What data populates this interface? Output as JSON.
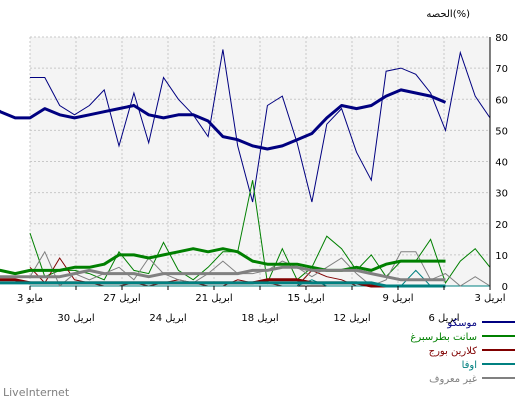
{
  "chart_data": {
    "type": "line",
    "ylabel": "الحصه(%)",
    "ylim": [
      0,
      80
    ],
    "yticks": [
      0,
      10,
      20,
      30,
      40,
      50,
      60,
      70,
      80
    ],
    "x_labels_row1": [
      "3 ابريل",
      "6 ابريل",
      "9 ابريل",
      "15 ابريل",
      "18 ابريل",
      "21 ابريل",
      "24 ابريل",
      "27 ابريل",
      "30 ابريل",
      "3 مايو"
    ],
    "x_labels_row2": [
      "6 ابريل",
      "12 ابريل",
      "18 ابريل",
      "24 ابريل",
      "30 ابريل"
    ],
    "x_labels_row1_text": [
      "3 ابريل",
      "9 ابريل",
      "15 ابريل",
      "21 ابريل",
      "27 ابريل",
      "3 مايو"
    ],
    "x_labels_row2_text": [
      "6 ابريل",
      "12 ابريل",
      "18 ابريل",
      "24 ابريل",
      "30 ابريل"
    ],
    "grid": true,
    "legend_position": "bottom-right",
    "series": [
      {
        "name": "موسكو",
        "color": "#000080",
        "raw": [
          54,
          61,
          75,
          50,
          62,
          68,
          70,
          69,
          34,
          43,
          57,
          52,
          27,
          46,
          61,
          58,
          27,
          45,
          76,
          48,
          55,
          60,
          67,
          46,
          62,
          45,
          63,
          58,
          55,
          58,
          67,
          67
        ],
        "avg": [
          59,
          61,
          62,
          63,
          61,
          58,
          57,
          58,
          54,
          49,
          47,
          45,
          44,
          45,
          47,
          48,
          53,
          55,
          55,
          54,
          55,
          58,
          57,
          56,
          55,
          54,
          55,
          57,
          54,
          54,
          56,
          59
        ]
      },
      {
        "name": "سانت بطرسبرغ",
        "color": "#008000",
        "raw": [
          6,
          12,
          8,
          1,
          15,
          8,
          8,
          3,
          10,
          5,
          12,
          16,
          6,
          2,
          12,
          1,
          34,
          11,
          11,
          6,
          2,
          5,
          14,
          4,
          5,
          11,
          2,
          4,
          5,
          5,
          3,
          17
        ],
        "avg": [
          8,
          8,
          8,
          8,
          7,
          5,
          6,
          5,
          5,
          6,
          7,
          7,
          7,
          8,
          11,
          12,
          11,
          12,
          11,
          10,
          9,
          10,
          10,
          7,
          6,
          6,
          5,
          5,
          5,
          4,
          5,
          5
        ]
      },
      {
        "name": "كلارين بورج",
        "color": "#800000",
        "raw": [
          0,
          0,
          0,
          0,
          0,
          0,
          0,
          0,
          0,
          0,
          2,
          3,
          5,
          0,
          0,
          1,
          1,
          2,
          0,
          0,
          1,
          2,
          1,
          0,
          1,
          0,
          0,
          1,
          2,
          9,
          1,
          6
        ],
        "avg": [
          0,
          0,
          0,
          0,
          0,
          0,
          1,
          1,
          1,
          1,
          2,
          2,
          2,
          1,
          1,
          1,
          1,
          1,
          1,
          1,
          1,
          1,
          1,
          1,
          1,
          1,
          1,
          1,
          1,
          2,
          2,
          3
        ]
      },
      {
        "name": "اوفا",
        "color": "#008080",
        "raw": [
          0,
          0,
          0,
          0,
          0,
          5,
          0,
          0,
          0,
          0,
          0,
          0,
          2,
          0,
          0,
          0,
          0,
          0,
          0,
          0,
          0,
          0,
          0,
          0,
          0,
          0,
          0,
          0,
          0,
          0,
          0,
          0
        ],
        "avg": [
          0,
          0,
          0,
          0,
          0,
          1,
          1,
          1,
          1,
          1,
          1,
          1,
          1,
          1,
          1,
          1,
          1,
          1,
          1,
          1,
          1,
          1,
          1,
          1,
          1,
          1,
          1,
          1,
          1,
          1,
          1,
          1
        ]
      },
      {
        "name": "غير معروف",
        "color": "#808080",
        "raw": [
          0,
          3,
          0,
          4,
          2,
          11,
          11,
          2,
          0,
          4,
          9,
          6,
          3,
          6,
          8,
          5,
          4,
          4,
          8,
          4,
          1,
          2,
          4,
          9,
          2,
          6,
          4,
          2,
          4,
          0,
          11,
          3
        ],
        "avg": [
          2,
          2,
          2,
          2,
          3,
          4,
          5,
          5,
          5,
          5,
          6,
          6,
          5,
          5,
          4,
          4,
          4,
          4,
          4,
          4,
          3,
          4,
          4,
          4,
          5,
          4,
          3,
          3,
          3,
          3,
          3,
          3
        ]
      }
    ]
  },
  "footer": "LiveInternet"
}
